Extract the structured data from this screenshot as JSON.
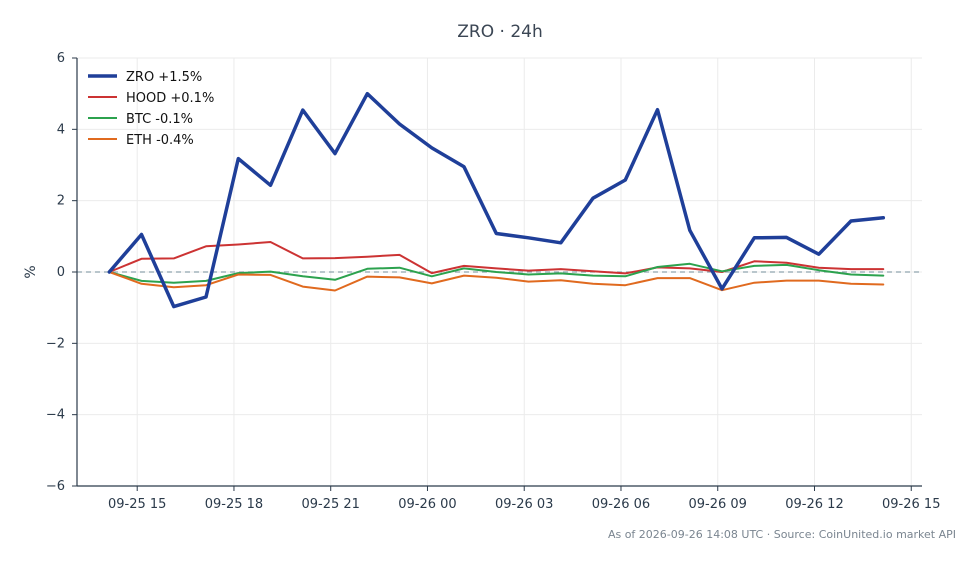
{
  "chart_data": {
    "type": "line",
    "title": "ZRO · 24h",
    "ylabel": "%",
    "xlabel": "",
    "ylim": [
      -6,
      6
    ],
    "yticks": [
      -6,
      -4,
      -2,
      0,
      2,
      4,
      6
    ],
    "ytick_labels": [
      "−6",
      "−4",
      "−2",
      "0",
      "2",
      "4",
      "6"
    ],
    "xlim": [
      "2026-09-25 13:08",
      "2026-09-26 15:20"
    ],
    "xticks": [
      "2026-09-25 15:00",
      "2026-09-25 18:00",
      "2026-09-25 21:00",
      "2026-09-26 00:00",
      "2026-09-26 03:00",
      "2026-09-26 06:00",
      "2026-09-26 09:00",
      "2026-09-26 12:00",
      "2026-09-26 15:00"
    ],
    "xtick_labels": [
      "09-25 15",
      "09-25 18",
      "09-25 21",
      "09-26 00",
      "09-26 03",
      "09-26 06",
      "09-26 09",
      "09-26 12",
      "09-26 15"
    ],
    "grid": true,
    "zero_line": true,
    "legend_position": "top-left",
    "x": [
      "2026-09-25 14:08",
      "2026-09-25 15:08",
      "2026-09-25 16:08",
      "2026-09-25 17:08",
      "2026-09-25 18:08",
      "2026-09-25 19:08",
      "2026-09-25 20:08",
      "2026-09-25 21:08",
      "2026-09-25 22:08",
      "2026-09-25 23:08",
      "2026-09-26 00:08",
      "2026-09-26 01:08",
      "2026-09-26 02:08",
      "2026-09-26 03:08",
      "2026-09-26 04:08",
      "2026-09-26 05:08",
      "2026-09-26 06:08",
      "2026-09-26 07:08",
      "2026-09-26 08:08",
      "2026-09-26 09:08",
      "2026-09-26 10:08",
      "2026-09-26 11:08",
      "2026-09-26 12:08",
      "2026-09-26 13:08",
      "2026-09-26 14:08"
    ],
    "series": [
      {
        "name": "ZRO +1.5%",
        "color": "#1f3f99",
        "width": 3.5,
        "values": [
          0,
          1.05,
          -0.97,
          -0.7,
          3.18,
          2.43,
          4.54,
          3.32,
          5.0,
          4.15,
          3.48,
          2.95,
          1.08,
          0.96,
          0.82,
          2.07,
          2.58,
          4.55,
          1.17,
          -0.47,
          0.96,
          0.97,
          0.5,
          1.43,
          1.52
        ]
      },
      {
        "name": "HOOD +0.1%",
        "color": "#cc3333",
        "width": 2,
        "values": [
          0,
          0.37,
          0.38,
          0.72,
          0.77,
          0.84,
          0.38,
          0.39,
          0.43,
          0.48,
          -0.03,
          0.17,
          0.1,
          0.04,
          0.08,
          0.02,
          -0.04,
          0.13,
          0.1,
          0.0,
          0.3,
          0.26,
          0.12,
          0.08,
          0.08
        ]
      },
      {
        "name": "BTC -0.1%",
        "color": "#2ca24e",
        "width": 2,
        "values": [
          0,
          -0.25,
          -0.3,
          -0.25,
          -0.03,
          0.01,
          -0.12,
          -0.22,
          0.09,
          0.12,
          -0.12,
          0.1,
          0.0,
          -0.07,
          -0.04,
          -0.1,
          -0.12,
          0.14,
          0.23,
          0.02,
          0.17,
          0.2,
          0.05,
          -0.07,
          -0.1
        ]
      },
      {
        "name": "ETH -0.4%",
        "color": "#e06a1f",
        "width": 2,
        "values": [
          0,
          -0.33,
          -0.43,
          -0.37,
          -0.07,
          -0.08,
          -0.41,
          -0.52,
          -0.13,
          -0.15,
          -0.32,
          -0.1,
          -0.16,
          -0.27,
          -0.23,
          -0.33,
          -0.37,
          -0.17,
          -0.17,
          -0.51,
          -0.3,
          -0.24,
          -0.24,
          -0.33,
          -0.35
        ]
      }
    ]
  },
  "footer": {
    "text": "As of 2026-09-26 14:08 UTC · Source: CoinUnited.io market API"
  }
}
